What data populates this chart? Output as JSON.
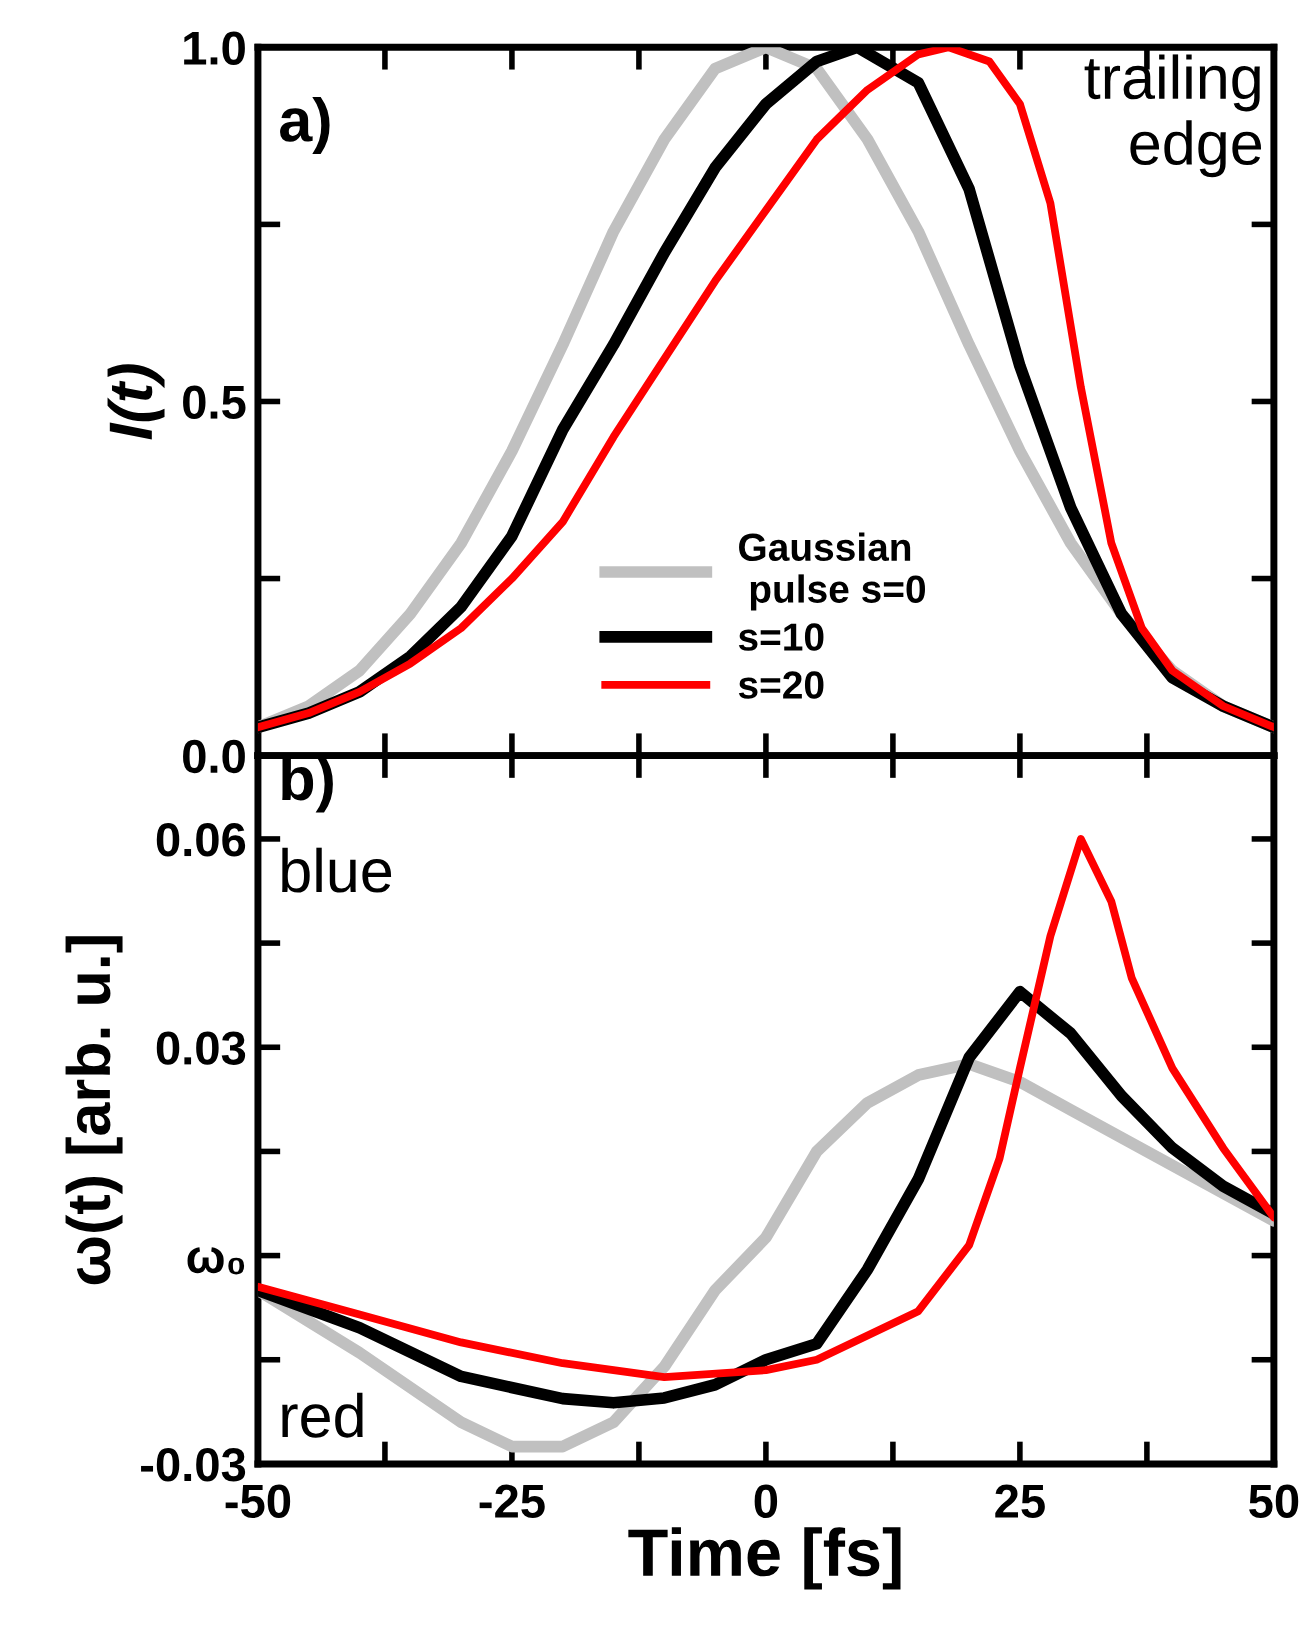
{
  "chart_data": [
    {
      "type": "line",
      "ylabel": "I(t)",
      "xlim": [
        -50,
        50
      ],
      "ylim": [
        0,
        1.0
      ],
      "xticks": [
        -50,
        {
          "value": -37.5,
          "label": null
        },
        -25,
        {
          "value": -12.5,
          "label": null
        },
        0,
        {
          "value": 12.5,
          "label": null
        },
        25,
        {
          "value": 37.5,
          "label": null
        },
        50
      ],
      "yticks": [
        {
          "value": 0,
          "label": "0.0"
        },
        {
          "value": 0.25,
          "label": null
        },
        0.5,
        {
          "value": 0.75,
          "label": null
        },
        {
          "value": 1,
          "label": "1.0"
        }
      ],
      "tick_labels": "y",
      "legend": "bottom",
      "grid": false,
      "marker": "none",
      "line_style": "solid",
      "annotations": [
        "a)",
        "trailing\nedge"
      ],
      "series": [
        {
          "name": "Gaussian\n pulse s=0",
          "color": "#c0c0c0",
          "x": [
            -50,
            -45,
            -40,
            -35,
            -30,
            -25,
            -20,
            -15,
            -10,
            -5,
            0,
            5,
            10,
            15,
            20,
            25,
            30,
            35,
            40,
            45,
            50
          ],
          "values": [
            0.04,
            0.07,
            0.12,
            0.2,
            0.3,
            0.43,
            0.58,
            0.74,
            0.87,
            0.97,
            1.0,
            0.97,
            0.87,
            0.74,
            0.58,
            0.43,
            0.3,
            0.2,
            0.12,
            0.07,
            0.04
          ]
        },
        {
          "name": "s=10",
          "color": "#000000",
          "x": [
            -50,
            -45,
            -40,
            -35,
            -30,
            -25,
            -20,
            -15,
            -10,
            -5,
            0,
            5,
            9,
            15,
            20,
            25,
            30,
            35,
            40,
            45,
            50
          ],
          "values": [
            0.04,
            0.06,
            0.09,
            0.14,
            0.21,
            0.31,
            0.46,
            0.58,
            0.71,
            0.83,
            0.92,
            0.98,
            1.0,
            0.95,
            0.8,
            0.55,
            0.35,
            0.2,
            0.11,
            0.07,
            0.04
          ]
        },
        {
          "name": "s=20",
          "color": "#ff0000",
          "x": [
            -50,
            -45,
            -40,
            -35,
            -30,
            -25,
            -20,
            -15,
            -10,
            -5,
            0,
            5,
            10,
            15,
            18,
            22,
            25,
            28,
            31,
            34,
            37,
            40,
            45,
            50
          ],
          "values": [
            0.04,
            0.06,
            0.09,
            0.13,
            0.18,
            0.25,
            0.33,
            0.45,
            0.56,
            0.67,
            0.77,
            0.87,
            0.94,
            0.99,
            1.0,
            0.98,
            0.92,
            0.78,
            0.52,
            0.3,
            0.18,
            0.12,
            0.07,
            0.04
          ]
        }
      ]
    },
    {
      "type": "line",
      "xlabel": "Time [fs]",
      "ylabel": "ω(t) [arb. u.]",
      "xlim": [
        -50,
        50
      ],
      "ylim": [
        -0.03,
        0.072
      ],
      "xticks": [
        -50,
        {
          "value": -37.5,
          "label": null
        },
        -25,
        {
          "value": -12.5,
          "label": null
        },
        0,
        {
          "value": 12.5,
          "label": null
        },
        25,
        {
          "value": 37.5,
          "label": null
        },
        50
      ],
      "yticks": [
        -0.03,
        {
          "value": -0.015,
          "label": null
        },
        {
          "value": 0,
          "label": "ω₀"
        },
        {
          "value": 0.015,
          "label": null
        },
        0.03,
        {
          "value": 0.045,
          "label": null
        },
        0.06
      ],
      "grid": false,
      "marker": "none",
      "line_style": "solid",
      "annotations": [
        "b)",
        "blue",
        "red"
      ],
      "series": [
        {
          "color": "#c0c0c0",
          "x": [
            -50,
            -40,
            -30,
            -25,
            -20,
            -15,
            -10,
            -5,
            0,
            5,
            10,
            15,
            20,
            25,
            30,
            35,
            40,
            45,
            50
          ],
          "values": [
            -0.005,
            -0.014,
            -0.024,
            -0.0275,
            -0.0275,
            -0.024,
            -0.016,
            -0.005,
            0.0026,
            0.015,
            0.022,
            0.026,
            0.0276,
            0.025,
            0.021,
            0.017,
            0.013,
            0.009,
            0.005
          ]
        },
        {
          "color": "#000000",
          "x": [
            -50,
            -40,
            -30,
            -20,
            -15,
            -10,
            -5,
            0,
            5,
            10,
            15,
            20,
            25,
            30,
            35,
            40,
            45,
            50
          ],
          "values": [
            -0.005,
            -0.0104,
            -0.0174,
            -0.0206,
            -0.0212,
            -0.0205,
            -0.0186,
            -0.015,
            -0.0127,
            -0.002,
            0.011,
            0.0285,
            0.038,
            0.032,
            0.023,
            0.0155,
            0.01,
            0.006
          ]
        },
        {
          "color": "#ff0000",
          "x": [
            -50,
            -40,
            -30,
            -20,
            -10,
            0,
            5,
            10,
            15,
            20,
            23,
            25,
            28,
            31,
            34,
            36,
            40,
            45,
            50
          ],
          "values": [
            -0.0045,
            -0.0085,
            -0.0125,
            -0.0155,
            -0.0175,
            -0.0165,
            -0.015,
            -0.0115,
            -0.008,
            0.0015,
            0.014,
            0.027,
            0.046,
            0.06,
            0.051,
            0.04,
            0.027,
            0.0155,
            0.0055
          ]
        }
      ]
    }
  ]
}
